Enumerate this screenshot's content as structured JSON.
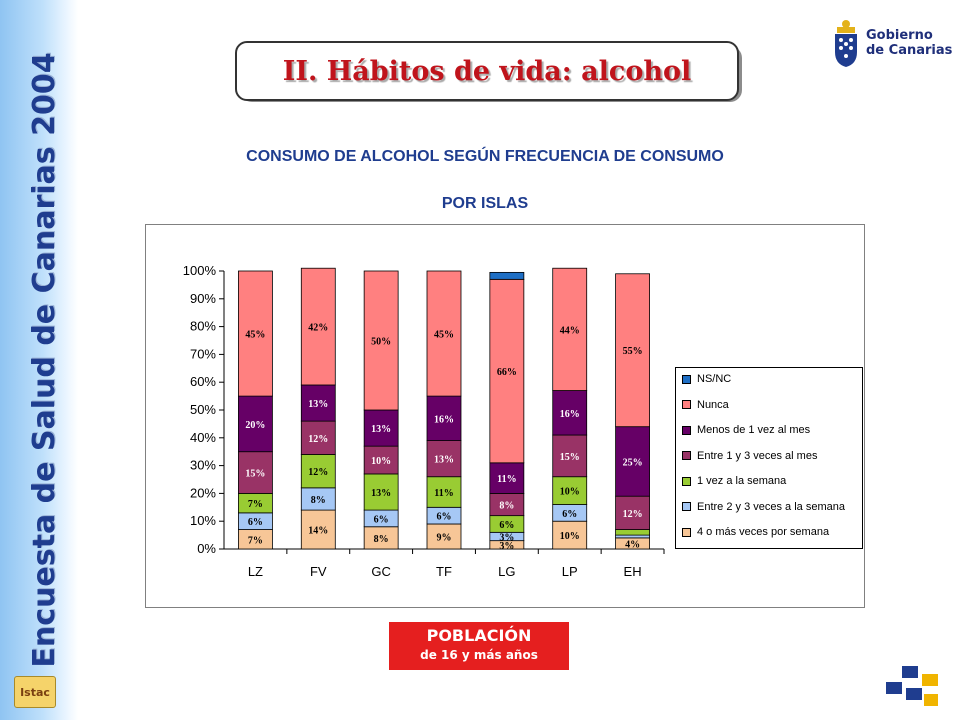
{
  "side_title": "Encuesta de Salud de Canarias 2004",
  "istac_label": "Istac",
  "title": "II. Hábitos de vida: alcohol",
  "logo": {
    "line1": "Gobierno",
    "line2": "de Canarias"
  },
  "subtitle_1": "CONSUMO DE ALCOHOL SEGÚN FRECUENCIA DE CONSUMO",
  "subtitle_2": "POR ISLAS",
  "population": {
    "line1": "POBLACIÓN",
    "line2": "de 16 y más años"
  },
  "chart_data": {
    "type": "bar",
    "stacked": true,
    "title": "",
    "xlabel": "",
    "ylabel": "",
    "ylim": [
      0,
      100
    ],
    "yticks": [
      "0%",
      "10%",
      "20%",
      "30%",
      "40%",
      "50%",
      "60%",
      "70%",
      "80%",
      "90%",
      "100%"
    ],
    "categories": [
      "LZ",
      "FV",
      "GC",
      "TF",
      "LG",
      "LP",
      "EH"
    ],
    "legend_position": "right",
    "series": [
      {
        "name": "4 o más veces por semana",
        "color": "#f7c697",
        "values": [
          7,
          14,
          8,
          9,
          3,
          10,
          4
        ],
        "labels": [
          "7%",
          "14%",
          "8%",
          "9%",
          "3%",
          "10%",
          "4%"
        ]
      },
      {
        "name": "Entre 2 y 3 veces a la semana",
        "color": "#a6c8f5",
        "values": [
          6,
          8,
          6,
          6,
          3,
          6,
          1
        ],
        "labels": [
          "6%",
          "8%",
          "6%",
          "6%",
          "3%",
          "6%",
          ""
        ]
      },
      {
        "name": "1 vez a la semana",
        "color": "#99cc33",
        "values": [
          7,
          12,
          13,
          11,
          6,
          10,
          2
        ],
        "labels": [
          "7%",
          "12%",
          "13%",
          "11%",
          "6%",
          "10%",
          ""
        ]
      },
      {
        "name": "Entre 1 y 3 veces al mes",
        "color": "#993366",
        "values": [
          15,
          12,
          10,
          13,
          8,
          15,
          12
        ],
        "labels": [
          "15%",
          "12%",
          "10%",
          "13%",
          "8%",
          "15%",
          "12%"
        ]
      },
      {
        "name": "Menos de 1 vez al mes",
        "color": "#660066",
        "values": [
          20,
          13,
          13,
          16,
          11,
          16,
          25
        ],
        "labels": [
          "20%",
          "13%",
          "13%",
          "16%",
          "11%",
          "16%",
          "25%"
        ]
      },
      {
        "name": "Nunca",
        "color": "#ff8080",
        "values": [
          45,
          42,
          50,
          45,
          66,
          44,
          55
        ],
        "labels": [
          "45%",
          "42%",
          "50%",
          "45%",
          "66%",
          "44%",
          "55%"
        ]
      },
      {
        "name": "NS/NC",
        "color": "#1f6fc5",
        "values": [
          0,
          0,
          0,
          0,
          2.5,
          0,
          0
        ],
        "labels": [
          "",
          "",
          "",
          "",
          "",
          "",
          ""
        ]
      }
    ],
    "legend_order": [
      "NS/NC",
      "Nunca",
      "Menos de 1 vez al mes",
      "Entre 1 y 3 veces al mes",
      "1 vez a la semana",
      "Entre 2 y 3 veces a la semana",
      "4 o más veces por semana"
    ]
  }
}
